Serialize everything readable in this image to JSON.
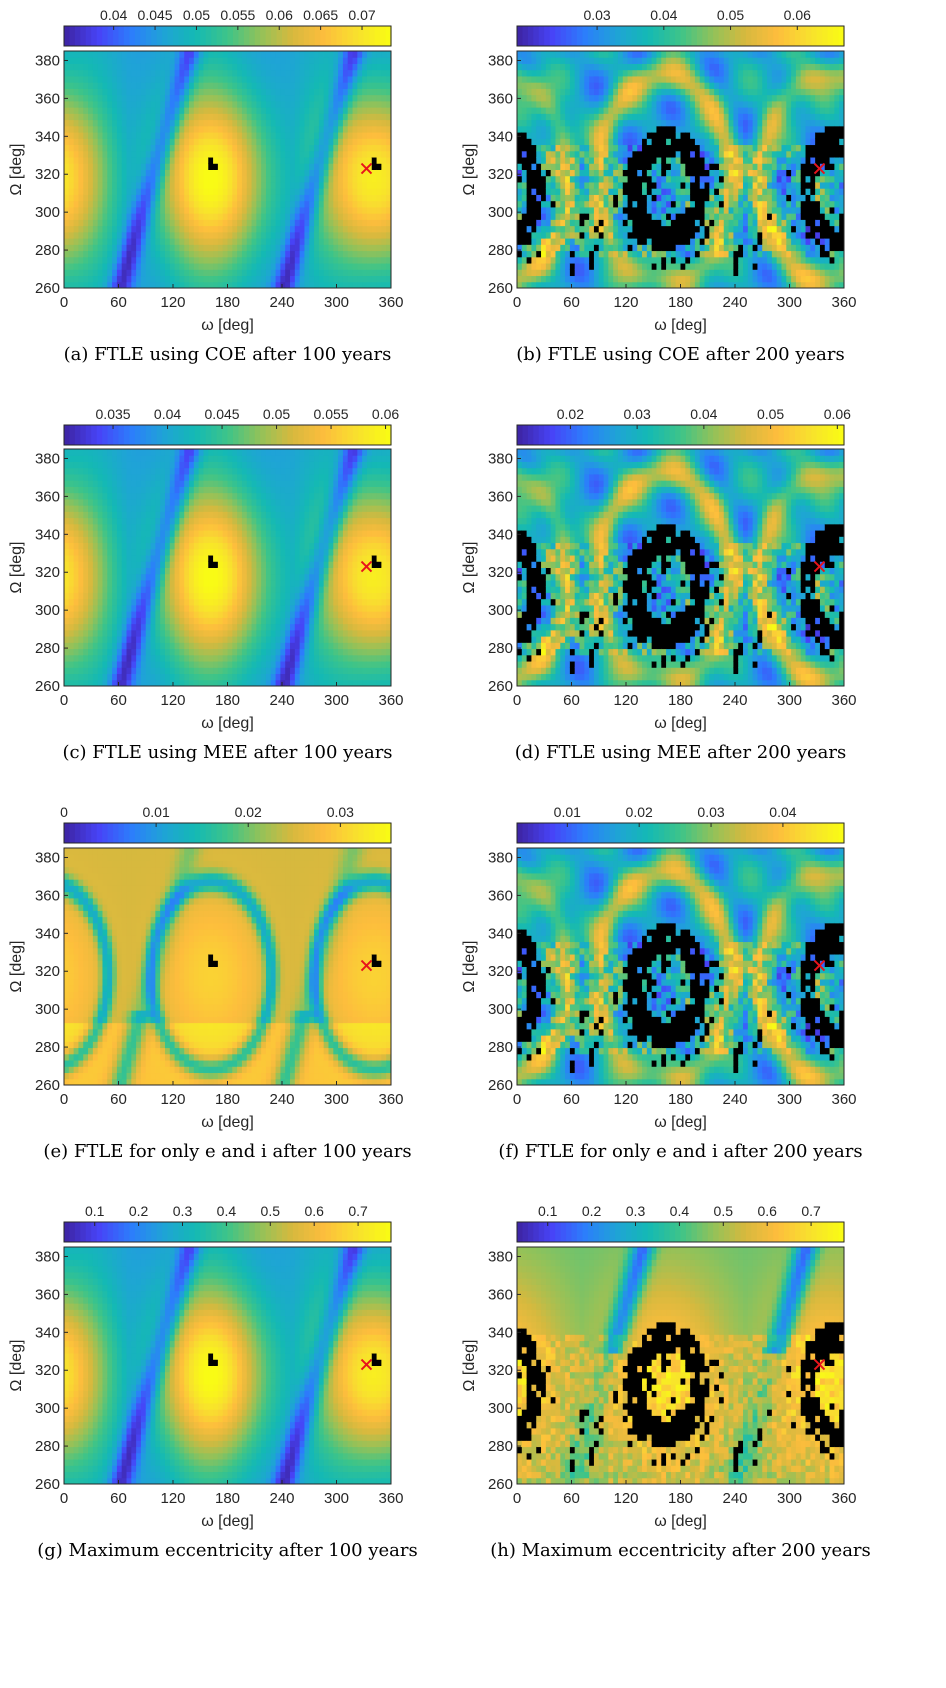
{
  "colors": {
    "colormap": [
      "#3e26a8",
      "#4743f7",
      "#2c7dfc",
      "#1fa3d7",
      "#14b9b4",
      "#3dc489",
      "#91c25a",
      "#d6b93e",
      "#fdbd3d",
      "#f8e02e",
      "#f9fb15"
    ],
    "black_region": "#000000",
    "marker": "#e8141c",
    "frame": "#262626"
  },
  "chart_data": [
    {
      "id": "a",
      "type": "heatmap",
      "caption": "(a) FTLE using COE after 100 years",
      "xlabel": "ω [deg]",
      "ylabel": "Ω [deg]",
      "xlim": [
        0,
        360
      ],
      "ylim": [
        260,
        385
      ],
      "xticks": [
        "0",
        "60",
        "120",
        "180",
        "240",
        "300",
        "360"
      ],
      "yticks": [
        "260",
        "280",
        "300",
        "320",
        "340",
        "360",
        "380"
      ],
      "colorbar": {
        "ticks": [
          "0.04",
          "0.045",
          "0.05",
          "0.055",
          "0.06",
          "0.065",
          "0.07"
        ],
        "range": [
          0.034,
          0.0735
        ]
      },
      "pattern": "smooth",
      "black_level": 0.05,
      "marker": {
        "omega": 333,
        "Omega": 323
      }
    },
    {
      "id": "b",
      "type": "heatmap",
      "caption": "(b) FTLE using COE after 200 years",
      "xlabel": "ω [deg]",
      "ylabel": "Ω [deg]",
      "xlim": [
        0,
        360
      ],
      "ylim": [
        260,
        385
      ],
      "xticks": [
        "0",
        "60",
        "120",
        "180",
        "240",
        "300",
        "360"
      ],
      "yticks": [
        "260",
        "280",
        "300",
        "320",
        "340",
        "360",
        "380"
      ],
      "colorbar": {
        "ticks": [
          "0.03",
          "0.04",
          "0.05",
          "0.06"
        ],
        "range": [
          0.018,
          0.067
        ]
      },
      "pattern": "chaotic",
      "black_level": 1,
      "marker": {
        "omega": 333,
        "Omega": 323
      }
    },
    {
      "id": "c",
      "type": "heatmap",
      "caption": "(c) FTLE using MEE after 100 years",
      "xlabel": "ω [deg]",
      "ylabel": "Ω [deg]",
      "xlim": [
        0,
        360
      ],
      "ylim": [
        260,
        385
      ],
      "xticks": [
        "0",
        "60",
        "120",
        "180",
        "240",
        "300",
        "360"
      ],
      "yticks": [
        "260",
        "280",
        "300",
        "320",
        "340",
        "360",
        "380"
      ],
      "colorbar": {
        "ticks": [
          "0.035",
          "0.04",
          "0.045",
          "0.05",
          "0.055",
          "0.06"
        ],
        "range": [
          0.0305,
          0.0605
        ]
      },
      "pattern": "smooth",
      "black_level": 0.05,
      "marker": {
        "omega": 333,
        "Omega": 323
      }
    },
    {
      "id": "d",
      "type": "heatmap",
      "caption": "(d) FTLE using MEE after 200 years",
      "xlabel": "ω [deg]",
      "ylabel": "Ω [deg]",
      "xlim": [
        0,
        360
      ],
      "ylim": [
        260,
        385
      ],
      "xticks": [
        "0",
        "60",
        "120",
        "180",
        "240",
        "300",
        "360"
      ],
      "yticks": [
        "260",
        "280",
        "300",
        "320",
        "340",
        "360",
        "380"
      ],
      "colorbar": {
        "ticks": [
          "0.02",
          "0.03",
          "0.04",
          "0.05",
          "0.06"
        ],
        "range": [
          0.012,
          0.061
        ]
      },
      "pattern": "chaotic",
      "black_level": 1,
      "marker": {
        "omega": 333,
        "Omega": 323
      }
    },
    {
      "id": "e",
      "type": "heatmap",
      "caption": "(e) FTLE for only e and i after 100 years",
      "xlabel": "ω [deg]",
      "ylabel": "Ω [deg]",
      "xlim": [
        0,
        360
      ],
      "ylim": [
        260,
        385
      ],
      "xticks": [
        "0",
        "60",
        "120",
        "180",
        "240",
        "300",
        "360"
      ],
      "yticks": [
        "260",
        "280",
        "300",
        "320",
        "340",
        "360",
        "380"
      ],
      "colorbar": {
        "ticks": [
          "0",
          "0.01",
          "0.02",
          "0.03"
        ],
        "range": [
          0,
          0.0355
        ]
      },
      "pattern": "ei",
      "black_level": 0.05,
      "marker": {
        "omega": 333,
        "Omega": 323
      }
    },
    {
      "id": "f",
      "type": "heatmap",
      "caption": "(f) FTLE for only e and i after 200 years",
      "xlabel": "ω [deg]",
      "ylabel": "Ω [deg]",
      "xlim": [
        0,
        360
      ],
      "ylim": [
        260,
        385
      ],
      "xticks": [
        "0",
        "60",
        "120",
        "180",
        "240",
        "300",
        "360"
      ],
      "yticks": [
        "260",
        "280",
        "300",
        "320",
        "340",
        "360",
        "380"
      ],
      "colorbar": {
        "ticks": [
          "0.01",
          "0.02",
          "0.03",
          "0.04"
        ],
        "range": [
          0.003,
          0.0485
        ]
      },
      "pattern": "chaotic",
      "black_level": 1,
      "marker": {
        "omega": 333,
        "Omega": 323
      }
    },
    {
      "id": "g",
      "type": "heatmap",
      "caption": "(g) Maximum eccentricity after 100 years",
      "xlabel": "ω [deg]",
      "ylabel": "Ω [deg]",
      "xlim": [
        0,
        360
      ],
      "ylim": [
        260,
        385
      ],
      "xticks": [
        "0",
        "60",
        "120",
        "180",
        "240",
        "300",
        "360"
      ],
      "yticks": [
        "260",
        "280",
        "300",
        "320",
        "340",
        "360",
        "380"
      ],
      "colorbar": {
        "ticks": [
          "0.1",
          "0.2",
          "0.3",
          "0.4",
          "0.5",
          "0.6",
          "0.7"
        ],
        "range": [
          0.03,
          0.775
        ]
      },
      "pattern": "smooth",
      "black_level": 0.05,
      "marker": {
        "omega": 333,
        "Omega": 323
      }
    },
    {
      "id": "h",
      "type": "heatmap",
      "caption": "(h) Maximum eccentricity after 200 years",
      "xlabel": "ω [deg]",
      "ylabel": "Ω [deg]",
      "xlim": [
        0,
        360
      ],
      "ylim": [
        260,
        385
      ],
      "xticks": [
        "0",
        "60",
        "120",
        "180",
        "240",
        "300",
        "360"
      ],
      "yticks": [
        "260",
        "280",
        "300",
        "320",
        "340",
        "360",
        "380"
      ],
      "colorbar": {
        "ticks": [
          "0.1",
          "0.2",
          "0.3",
          "0.4",
          "0.5",
          "0.6",
          "0.7"
        ],
        "range": [
          0.03,
          0.775
        ]
      },
      "pattern": "ecc200",
      "black_level": 1,
      "marker": {
        "omega": 333,
        "Omega": 323
      }
    }
  ]
}
